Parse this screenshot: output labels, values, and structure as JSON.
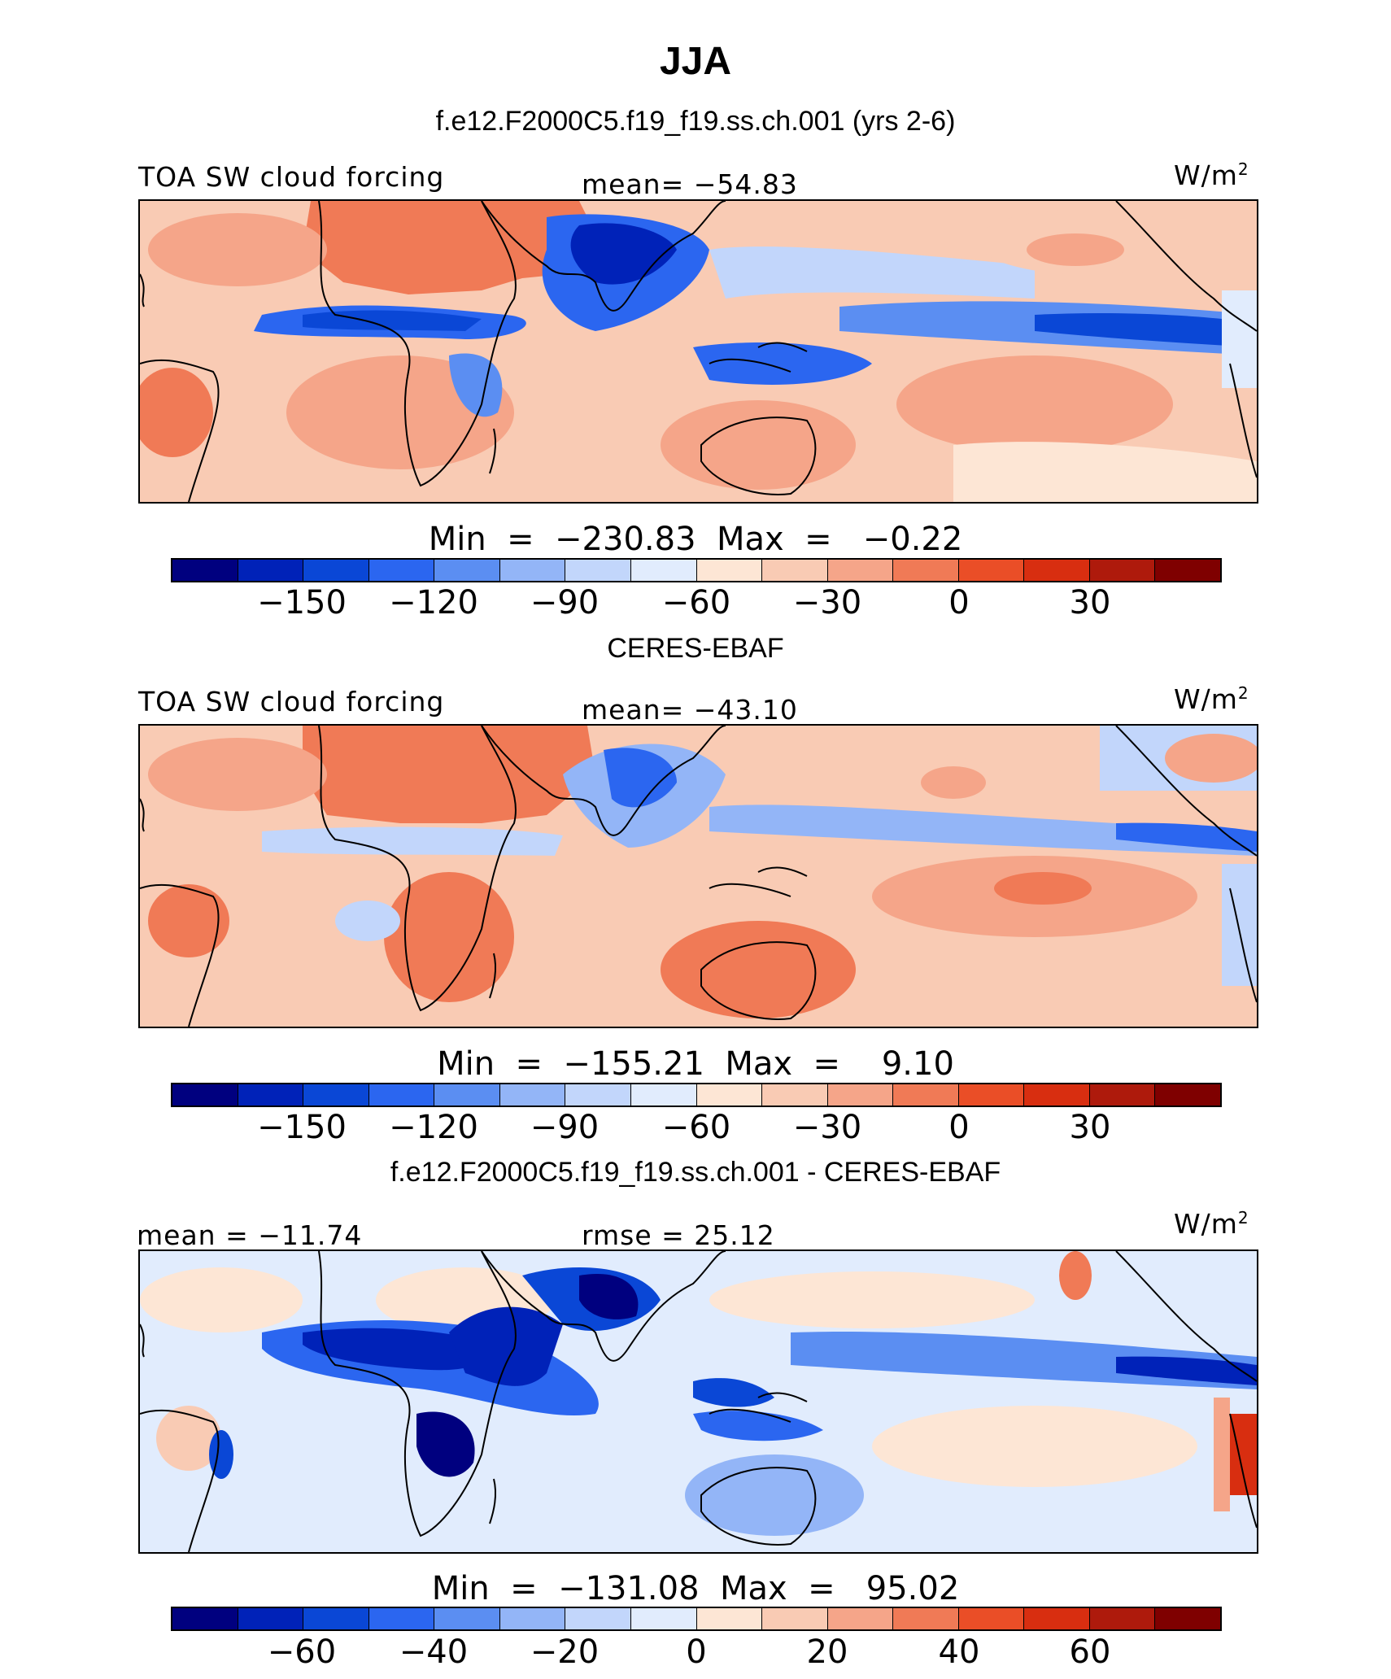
{
  "title": "JJA",
  "palette": [
    "#00007f",
    "#0022b8",
    "#0a47d6",
    "#2b66f0",
    "#5b8ef2",
    "#93b5f7",
    "#c2d6fb",
    "#e1ecfd",
    "#fde6d5",
    "#f9cbb4",
    "#f5a589",
    "#f07a56",
    "#ea4e27",
    "#d82e10",
    "#ae1a0c",
    "#7f0000"
  ],
  "panels": [
    {
      "header": "f.e12.F2000C5.f19_f19.ss.ch.001 (yrs 2-6)",
      "left_label": "TOA SW cloud forcing",
      "center_label": "mean= −54.83",
      "units": "W/m",
      "units_sup": "2",
      "minmax": "Min  =  −230.83  Max  =   −0.22",
      "colorbar_ticks": [
        "−150",
        "−120",
        "−90",
        "−60",
        "−30",
        "0",
        "30"
      ]
    },
    {
      "header": "CERES-EBAF",
      "left_label": "TOA SW cloud forcing",
      "center_label": "mean= −43.10",
      "units": "W/m",
      "units_sup": "2",
      "minmax": "Min  =  −155.21  Max  =    9.10",
      "colorbar_ticks": [
        "−150",
        "−120",
        "−90",
        "−60",
        "−30",
        "0",
        "30"
      ]
    },
    {
      "header": "f.e12.F2000C5.f19_f19.ss.ch.001 - CERES-EBAF",
      "left_label": "mean = −11.74",
      "center_label": "rmse =  25.12",
      "units": "W/m",
      "units_sup": "2",
      "minmax": "Min  =  −131.08  Max  =   95.02",
      "colorbar_ticks": [
        "−60",
        "−40",
        "−20",
        "0",
        "20",
        "40",
        "60"
      ]
    }
  ]
}
